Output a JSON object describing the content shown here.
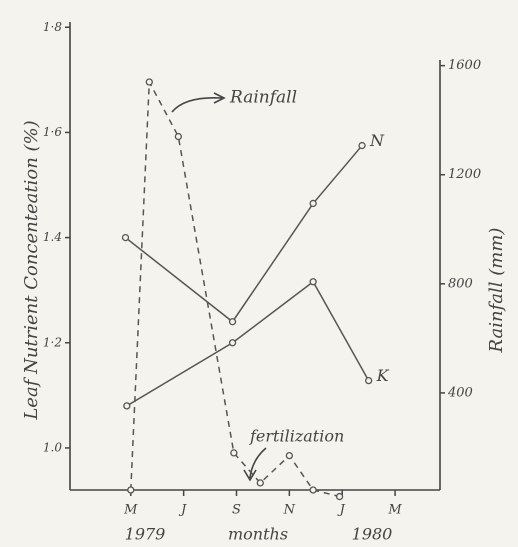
{
  "chart_data": {
    "type": "line",
    "ylabel": "Leaf Nutrient Concenteation (%)",
    "y2label": "Rainfall (mm)",
    "xlabel": "months",
    "annotations": [
      "Rainfall",
      "fertilization",
      "1979",
      "1980"
    ],
    "xlim": [
      -2.3,
      11.7
    ],
    "xticks": [
      {
        "value": 0,
        "label": "M"
      },
      {
        "value": 2,
        "label": "J"
      },
      {
        "value": 4,
        "label": "S"
      },
      {
        "value": 6,
        "label": "N"
      },
      {
        "value": 8,
        "label": "J"
      },
      {
        "value": 10,
        "label": "M"
      }
    ],
    "ylim": [
      0.92,
      1.81
    ],
    "yticks": [
      {
        "value": 1.0,
        "label": "1.0"
      },
      {
        "value": 1.2,
        "label": "1·2"
      },
      1.4,
      {
        "value": 1.6,
        "label": "1·6"
      },
      {
        "value": 1.8,
        "label": "1·8"
      }
    ],
    "y2lim": [
      44,
      1760
    ],
    "y2ticks": [
      400,
      800,
      1200,
      1600
    ],
    "series": [
      {
        "name": "N",
        "color": "#555555",
        "x": [
          -0.2,
          3.85,
          6.9,
          8.75
        ],
        "values": [
          1.4,
          1.24,
          1.465,
          1.575
        ]
      },
      {
        "name": "K",
        "color": "#555555",
        "x": [
          -0.15,
          3.85,
          6.9,
          9.0
        ],
        "values": [
          1.08,
          1.2,
          1.316,
          1.128
        ]
      },
      {
        "name": "Rainfall",
        "color": "#555555",
        "axis": "y2",
        "dashed": true,
        "x": [
          0,
          0.7,
          1.8,
          3.9,
          4.9,
          6.0,
          6.9,
          7.9
        ],
        "values": [
          44,
          1540,
          1340,
          180,
          70,
          170,
          44,
          20
        ]
      }
    ]
  }
}
